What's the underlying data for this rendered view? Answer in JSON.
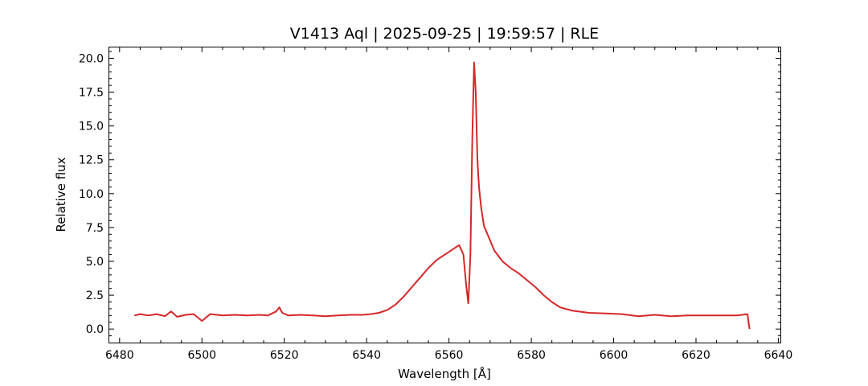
{
  "chart_data": {
    "type": "line",
    "title": "V1413 Aql | 2025-09-25 | 19:59:57 | RLE",
    "xlabel": "Wavelength [Å]",
    "ylabel": "Relative flux",
    "xlim": [
      6477.5,
      6640.5
    ],
    "ylim": [
      -1.0,
      20.8
    ],
    "xticks": [
      6480,
      6500,
      6520,
      6540,
      6560,
      6580,
      6600,
      6620,
      6640
    ],
    "xtick_labels": [
      "6480",
      "6500",
      "6520",
      "6540",
      "6560",
      "6580",
      "6600",
      "6620",
      "6640"
    ],
    "yticks": [
      0.0,
      2.5,
      5.0,
      7.5,
      10.0,
      12.5,
      15.0,
      17.5,
      20.0
    ],
    "ytick_labels": [
      "0.0",
      "2.5",
      "5.0",
      "7.5",
      "10.0",
      "12.5",
      "15.0",
      "17.5",
      "20.0"
    ],
    "grid": false,
    "line_color": "#d62728",
    "series": [
      {
        "x": [
          6483.6,
          6485,
          6487,
          6489,
          6491,
          6492.5,
          6494,
          6496,
          6498,
          6500,
          6502,
          6505,
          6508,
          6511,
          6514,
          6516,
          6518,
          6518.8,
          6519.5,
          6521,
          6524,
          6527,
          6530,
          6533,
          6536,
          6539,
          6541,
          6543,
          6545,
          6547,
          6549,
          6551,
          6553,
          6555,
          6557,
          6559,
          6561,
          6562.5,
          6563.5,
          6564.2,
          6564.7,
          6565.2,
          6565.7,
          6566.1,
          6566.5,
          6566.9,
          6567.3,
          6567.8,
          6568.5,
          6569.5,
          6571,
          6573,
          6575,
          6577,
          6579,
          6581,
          6583,
          6585,
          6587,
          6590,
          6594,
          6598,
          6602,
          6606,
          6610,
          6614,
          6618,
          6622,
          6626,
          6630,
          6632.5,
          6633.0
        ],
        "y": [
          1.0,
          1.1,
          1.0,
          1.1,
          0.95,
          1.3,
          0.9,
          1.05,
          1.1,
          0.6,
          1.1,
          1.0,
          1.05,
          1.0,
          1.05,
          1.0,
          1.3,
          1.6,
          1.2,
          1.0,
          1.05,
          1.0,
          0.95,
          1.0,
          1.05,
          1.05,
          1.1,
          1.2,
          1.4,
          1.8,
          2.4,
          3.1,
          3.8,
          4.5,
          5.1,
          5.5,
          5.9,
          6.2,
          5.5,
          3.2,
          1.9,
          5.5,
          14.5,
          19.7,
          17.5,
          12.5,
          10.5,
          9.0,
          7.6,
          6.9,
          5.8,
          5.0,
          4.5,
          4.1,
          3.6,
          3.1,
          2.5,
          2.0,
          1.6,
          1.35,
          1.2,
          1.15,
          1.1,
          0.95,
          1.05,
          0.95,
          1.0,
          1.0,
          1.0,
          1.0,
          1.1,
          0.0
        ]
      }
    ]
  }
}
